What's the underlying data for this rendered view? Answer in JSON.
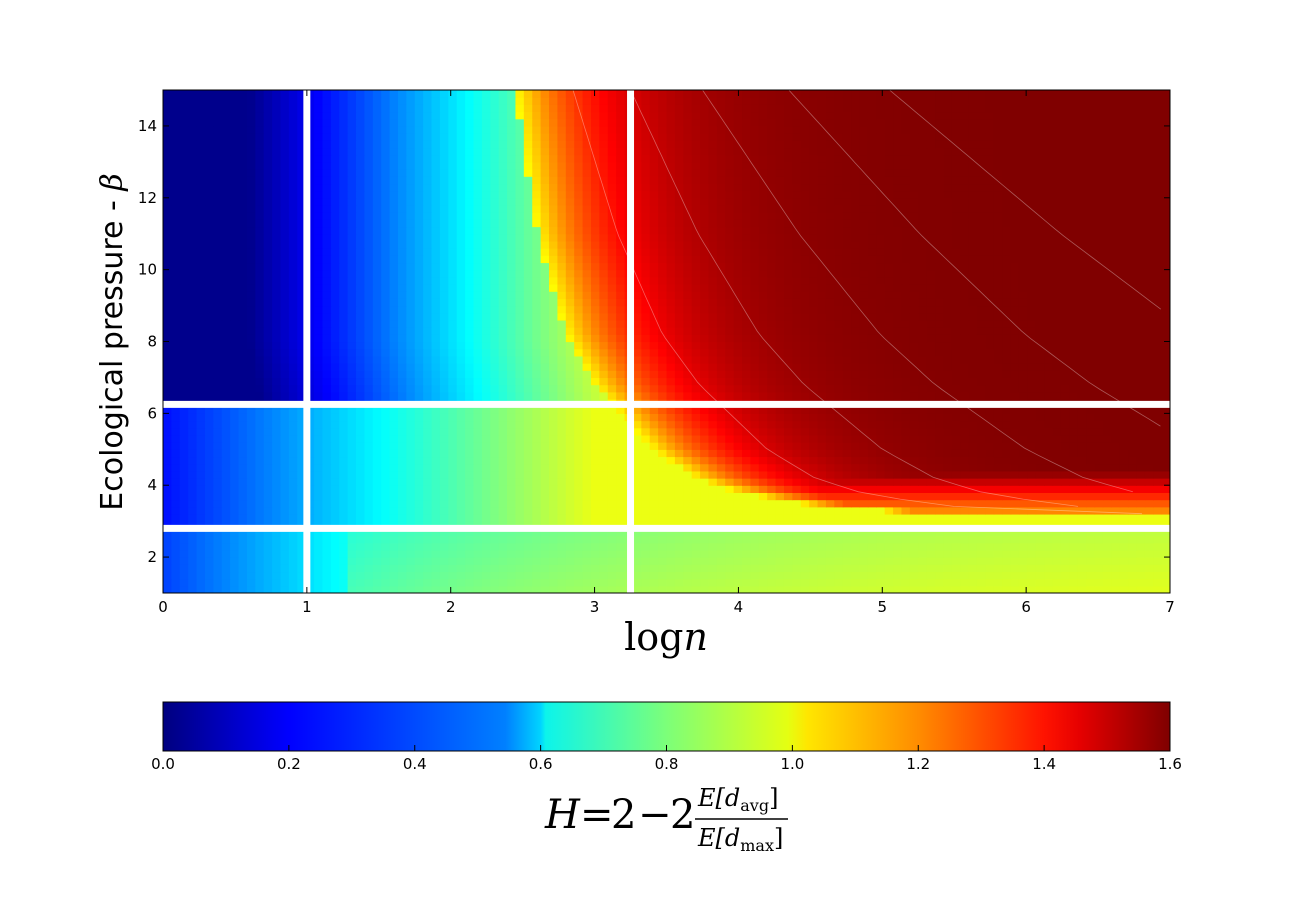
{
  "chart_data": {
    "type": "heatmap",
    "x_label_main": "log",
    "x_label_var": "n",
    "y_label_text": "Ecological pressure - ",
    "y_label_symbol": "β",
    "xlim": [
      0,
      7
    ],
    "ylim": [
      1,
      15
    ],
    "x_ticks": [
      0,
      1,
      2,
      3,
      4,
      5,
      6,
      7
    ],
    "y_ticks": [
      2,
      4,
      6,
      8,
      10,
      12,
      14
    ],
    "grid": "off",
    "white_lines": {
      "x": [
        1.0,
        3.25
      ],
      "y": [
        2.8,
        6.25
      ]
    },
    "value_range": [
      0.0,
      1.6
    ],
    "transition_curve": {
      "log_n": [
        2.45,
        2.6,
        2.8,
        3.0,
        3.2,
        3.4,
        3.7,
        4.0,
        4.5,
        5.0,
        6.0,
        7.0
      ],
      "beta": [
        15,
        11.0,
        8.2,
        6.8,
        5.9,
        5.0,
        4.2,
        3.8,
        3.45,
        3.3,
        3.2,
        3.15
      ]
    },
    "colorbar": {
      "ticks": [
        "0.0",
        "0.2",
        "0.4",
        "0.6",
        "0.8",
        "1.0",
        "1.2",
        "1.4",
        "1.6"
      ],
      "formula_H": "H",
      "formula_eq": "=",
      "formula_2a": "2",
      "formula_minus": "−",
      "formula_2b": "2",
      "formula_num_E": "E[d",
      "formula_num_sub": "avg",
      "formula_num_close": "]",
      "formula_den_E": "E[d",
      "formula_den_sub": "max",
      "formula_den_close": "]"
    },
    "colors": {
      "colormap": "jet",
      "lines": "#ffffff",
      "frame": "#000000"
    }
  }
}
